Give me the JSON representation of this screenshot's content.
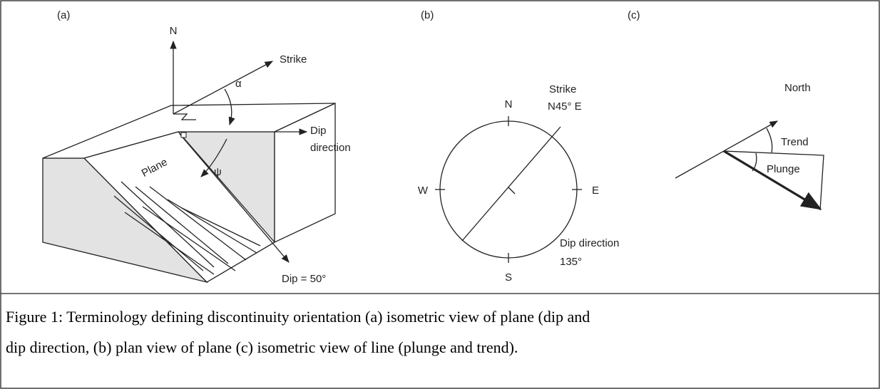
{
  "panels": {
    "a": {
      "label": "(a)",
      "north": "N",
      "strike": "Strike",
      "alpha": "α",
      "psi": "ψ",
      "dip_direction": [
        "Dip",
        "direction"
      ],
      "plane": "Plane",
      "dip": "Dip = 50°"
    },
    "b": {
      "label": "(b)",
      "north": "N",
      "strike": [
        "Strike",
        "N45° E"
      ],
      "west": "W",
      "east": "E",
      "south": "S",
      "dip_direction": [
        "Dip direction",
        "135°"
      ]
    },
    "c": {
      "label": "(c)",
      "north": "North",
      "trend": "Trend",
      "plunge": "Plunge"
    }
  },
  "caption": {
    "lines": [
      "Figure 1: Terminology defining discontinuity orientation (a) isometric view of plane (dip and",
      "dip direction, (b) plan view of plane (c) isometric view of line (plunge and trend)."
    ]
  }
}
